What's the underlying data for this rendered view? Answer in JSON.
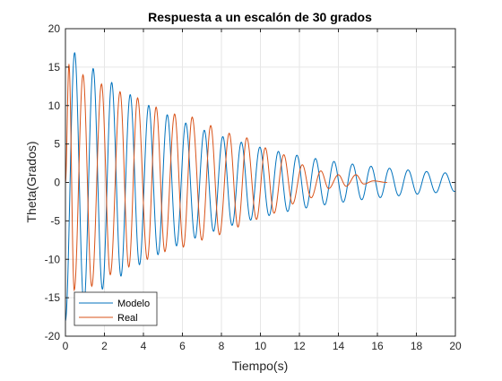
{
  "chart_data": {
    "type": "line",
    "title": "Respuesta a un escalón de 30 grados",
    "xlabel": "Tiempo(s)",
    "ylabel": "Theta(Grados)",
    "xlim": [
      0,
      20
    ],
    "ylim": [
      -20,
      20
    ],
    "xticks": [
      0,
      2,
      4,
      6,
      8,
      10,
      12,
      14,
      16,
      18,
      20
    ],
    "yticks": [
      -20,
      -15,
      -10,
      -5,
      0,
      5,
      10,
      15,
      20
    ],
    "grid": true,
    "legend_position": "bottom-left",
    "series": [
      {
        "name": "Modelo",
        "color": "#0072BD",
        "x": [
          0,
          20
        ],
        "model": {
          "offset": 0,
          "start_value": 0,
          "amplitude": 18.0,
          "decay_per_s": 0.137,
          "period_s": 0.95,
          "phase_rad": -1.571,
          "end_amplitude": 1.1
        }
      },
      {
        "name": "Real",
        "color": "#D95319",
        "x": [
          0,
          16.5
        ],
        "peaks": [
          [
            0.18,
            15.3
          ],
          [
            0.45,
            -14.0
          ],
          [
            0.9,
            14.0
          ],
          [
            1.35,
            -13.5
          ],
          [
            1.85,
            12.8
          ],
          [
            2.3,
            -12.0
          ],
          [
            2.8,
            11.8
          ],
          [
            3.25,
            -11.0
          ],
          [
            3.7,
            11.0
          ],
          [
            4.2,
            -10.0
          ],
          [
            4.65,
            9.8
          ],
          [
            5.1,
            -9.0
          ],
          [
            5.6,
            8.9
          ],
          [
            6.05,
            -8.4
          ],
          [
            6.5,
            8.5
          ],
          [
            7.0,
            -7.5
          ],
          [
            7.45,
            7.4
          ],
          [
            7.9,
            -6.8
          ],
          [
            8.4,
            6.4
          ],
          [
            8.85,
            -5.8
          ],
          [
            9.3,
            5.8
          ],
          [
            9.8,
            -4.8
          ],
          [
            10.25,
            4.5
          ],
          [
            10.7,
            -4.0
          ],
          [
            11.2,
            3.6
          ],
          [
            11.65,
            -2.8
          ],
          [
            12.15,
            2.3
          ],
          [
            12.6,
            -2.0
          ],
          [
            13.1,
            1.5
          ],
          [
            13.5,
            -0.8
          ],
          [
            14.0,
            1.0
          ],
          [
            14.4,
            -0.5
          ],
          [
            14.9,
            1.0
          ],
          [
            15.3,
            -0.2
          ],
          [
            15.8,
            0.2
          ],
          [
            16.5,
            0.0
          ]
        ]
      }
    ]
  }
}
